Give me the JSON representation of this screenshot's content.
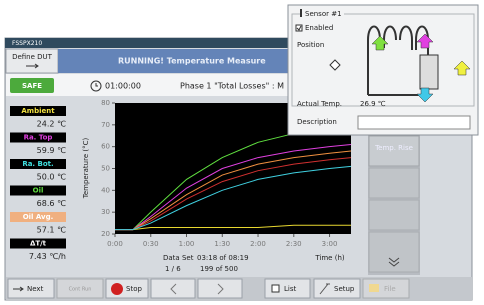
{
  "window": {
    "title": "FSSPX210",
    "define_button": "Define DUT",
    "status": "RUNNING! Temperature Measure",
    "safe": "SAFE",
    "clock": "01:00:00",
    "phase": "Phase 1 \"Total Losses\" : M"
  },
  "readings": [
    {
      "label": "Ambient",
      "value": "24.2 ℃",
      "color": "#f0e040",
      "bg": "#000000"
    },
    {
      "label": "Ra. Top",
      "value": "59.9 ℃",
      "color": "#e040e0",
      "bg": "#000000"
    },
    {
      "label": "Ra. Bot.",
      "value": "50.0 ℃",
      "color": "#40e0e0",
      "bg": "#000000"
    },
    {
      "label": "Oil",
      "value": "68.6 ℃",
      "color": "#60e040",
      "bg": "#000000"
    },
    {
      "label": "Oil Avg.",
      "value": "57.1 ℃",
      "color": "#ffffff",
      "bg": "#f0b080"
    },
    {
      "label": "ΔT/t",
      "value": "7.43 ℃/h",
      "color": "#ffffff",
      "bg": "#000000"
    }
  ],
  "chart_data": {
    "type": "line",
    "ylabel": "Temperature (°C)",
    "xlabel": "Time (h)",
    "x": [
      0,
      0.25,
      0.5,
      1,
      1.5,
      2,
      2.5,
      3,
      3.3
    ],
    "xlim": [
      0,
      3.3
    ],
    "xticks": [
      {
        "value": 0,
        "label": "0:00"
      },
      {
        "value": 0.5,
        "label": "0:30"
      },
      {
        "value": 1,
        "label": "1:00"
      },
      {
        "value": 1.5,
        "label": "1:30"
      },
      {
        "value": 2,
        "label": "2:00"
      },
      {
        "value": 2.5,
        "label": "2:30"
      },
      {
        "value": 3,
        "label": "3:00"
      }
    ],
    "ylim": [
      20,
      80
    ],
    "yticks": [
      20,
      30,
      40,
      50,
      60,
      70,
      80
    ],
    "series": [
      {
        "color": "#e8d830",
        "values": [
          22,
          22,
          23,
          23,
          23,
          23,
          24,
          24,
          24
        ]
      },
      {
        "color": "#60e040",
        "values": [
          22,
          22,
          30,
          45,
          55,
          62,
          66,
          68,
          69
        ]
      },
      {
        "color": "#e040e0",
        "values": [
          22,
          22,
          28,
          41,
          50,
          55,
          58,
          60,
          61
        ]
      },
      {
        "color": "#f09040",
        "values": [
          22,
          22,
          27,
          38,
          47,
          52,
          55,
          57,
          58
        ]
      },
      {
        "color": "#d03030",
        "values": [
          22,
          22,
          26,
          36,
          44,
          49,
          52,
          54,
          55
        ]
      },
      {
        "color": "#40d0e0",
        "values": [
          22,
          22,
          25,
          33,
          40,
          45,
          48,
          50,
          51
        ]
      }
    ]
  },
  "dataset": {
    "label": "Data Set",
    "position": "03:18 of 08:19",
    "page": "1 / 6",
    "count": "199 of 500"
  },
  "side_button": "Temp. Rise",
  "toolbar": {
    "next": "Next",
    "cont": "Cont Run",
    "stop": "Stop",
    "list": "List",
    "setup": "Setup",
    "file": "File"
  },
  "sensor_popup": {
    "title": "Sensor #1",
    "enabled": "Enabled",
    "position": "Position",
    "actual_label": "Actual Temp.",
    "actual_value": "26.9 ℃",
    "description": "Description"
  }
}
